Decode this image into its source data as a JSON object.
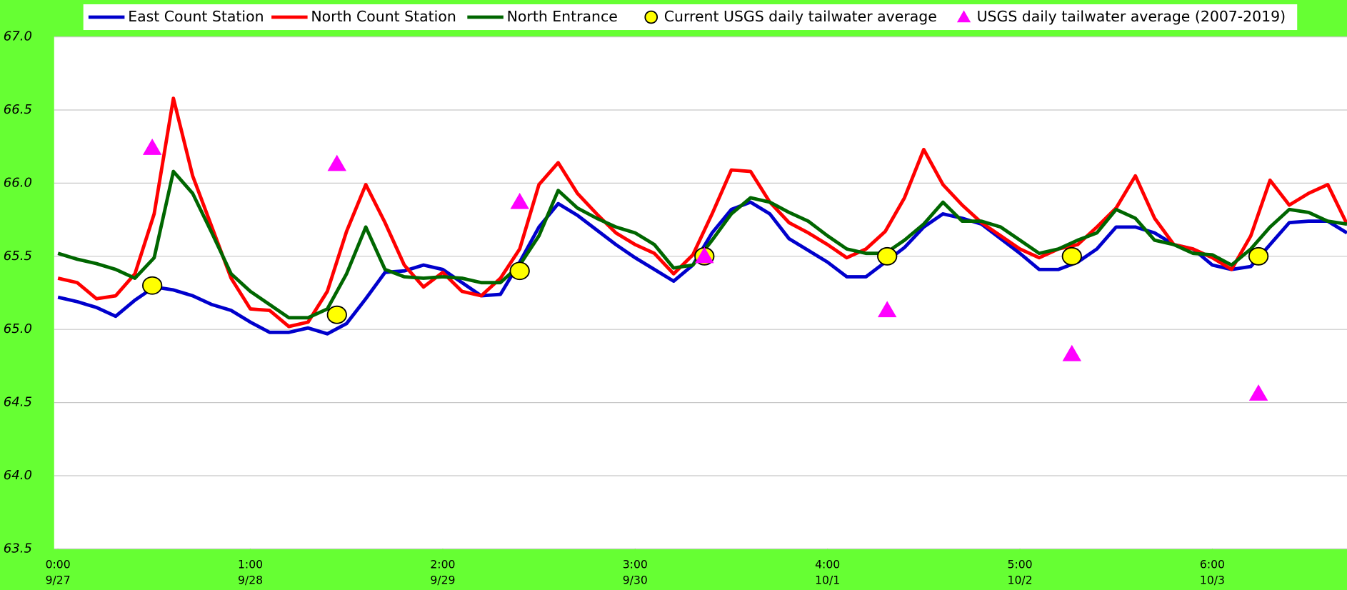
{
  "chart_data": {
    "type": "line",
    "x": [
      0,
      0.1,
      0.2,
      0.3,
      0.4,
      0.5,
      0.6,
      0.7,
      0.8,
      0.9,
      1,
      1.1,
      1.2,
      1.3,
      1.4,
      1.5,
      1.6,
      1.7,
      1.8,
      1.9,
      2,
      2.1,
      2.2,
      2.3,
      2.4,
      2.5,
      2.6,
      2.7,
      2.8,
      2.9,
      3,
      3.1,
      3.2,
      3.3,
      3.4,
      3.5,
      3.6,
      3.7,
      3.8,
      3.9,
      4,
      4.1,
      4.2,
      4.3,
      4.4,
      4.5,
      4.6,
      4.7,
      4.8,
      4.9,
      5,
      5.1,
      5.2,
      5.3,
      5.4,
      5.5,
      5.6,
      5.7,
      5.8,
      5.9,
      6,
      6.1,
      6.2,
      6.3,
      6.4,
      6.5,
      6.6,
      6.7
    ],
    "series": [
      {
        "name": "East Count Station",
        "color": "#0000cc",
        "values": [
          65.22,
          65.19,
          65.15,
          65.09,
          65.2,
          65.29,
          65.27,
          65.23,
          65.17,
          65.13,
          65.05,
          64.98,
          64.98,
          65.01,
          64.97,
          65.04,
          65.21,
          65.39,
          65.4,
          65.44,
          65.41,
          65.32,
          65.23,
          65.24,
          65.46,
          65.7,
          65.86,
          65.78,
          65.68,
          65.58,
          65.49,
          65.41,
          65.33,
          65.44,
          65.66,
          65.82,
          65.87,
          65.79,
          65.62,
          65.54,
          65.46,
          65.36,
          65.36,
          65.46,
          65.56,
          65.7,
          65.79,
          65.76,
          65.72,
          65.62,
          65.52,
          65.41,
          65.41,
          65.46,
          65.55,
          65.7,
          65.7,
          65.66,
          65.58,
          65.55,
          65.44,
          65.41,
          65.43,
          65.58,
          65.73,
          65.74,
          65.74,
          65.66
        ]
      },
      {
        "name": "North Count Station",
        "color": "#ff0000",
        "values": [
          65.35,
          65.32,
          65.21,
          65.23,
          65.38,
          65.79,
          66.58,
          66.05,
          65.7,
          65.35,
          65.14,
          65.13,
          65.02,
          65.05,
          65.26,
          65.67,
          65.99,
          65.73,
          65.44,
          65.29,
          65.39,
          65.26,
          65.23,
          65.35,
          65.55,
          65.99,
          66.14,
          65.93,
          65.79,
          65.66,
          65.58,
          65.52,
          65.38,
          65.51,
          65.79,
          66.09,
          66.08,
          65.87,
          65.73,
          65.66,
          65.58,
          65.49,
          65.55,
          65.67,
          65.9,
          66.23,
          65.99,
          65.85,
          65.73,
          65.64,
          65.55,
          65.49,
          65.55,
          65.58,
          65.7,
          65.83,
          66.05,
          65.76,
          65.58,
          65.55,
          65.49,
          65.41,
          65.64,
          66.02,
          65.85,
          65.93,
          65.99,
          65.72
        ]
      },
      {
        "name": "North Entrance",
        "color": "#006600",
        "values": [
          65.52,
          65.48,
          65.45,
          65.41,
          65.35,
          65.49,
          66.08,
          65.93,
          65.66,
          65.38,
          65.26,
          65.17,
          65.08,
          65.08,
          65.14,
          65.38,
          65.7,
          65.41,
          65.36,
          65.35,
          65.36,
          65.35,
          65.32,
          65.32,
          65.44,
          65.64,
          65.95,
          65.83,
          65.76,
          65.7,
          65.66,
          65.58,
          65.42,
          65.44,
          65.61,
          65.79,
          65.9,
          65.87,
          65.8,
          65.74,
          65.64,
          65.55,
          65.52,
          65.52,
          65.61,
          65.72,
          65.87,
          65.74,
          65.74,
          65.7,
          65.61,
          65.52,
          65.55,
          65.61,
          65.66,
          65.82,
          65.76,
          65.61,
          65.58,
          65.52,
          65.51,
          65.44,
          65.55,
          65.7,
          65.82,
          65.8,
          65.74,
          65.72
        ]
      },
      {
        "name": "Current USGS daily tailwater average",
        "color": "#ffff00",
        "marker": "circle",
        "x": [
          0.49,
          1.45,
          2.4,
          3.36,
          4.31,
          5.27,
          6.24
        ],
        "values": [
          65.3,
          65.1,
          65.4,
          65.5,
          65.5,
          65.5,
          65.5
        ]
      },
      {
        "name": "USGS daily tailwater average (2007-2019)",
        "color": "#ff00ff",
        "marker": "triangle",
        "x": [
          0.49,
          1.45,
          2.4,
          3.36,
          4.31,
          5.27,
          6.24
        ],
        "values": [
          66.24,
          66.13,
          65.87,
          65.5,
          65.13,
          64.83,
          64.56
        ]
      }
    ],
    "xlim": [
      -0.02,
      6.7
    ],
    "xticks": [
      {
        "value": 0,
        "label": "0:00"
      },
      {
        "value": 1,
        "label": "1:00"
      },
      {
        "value": 2,
        "label": "2:00"
      },
      {
        "value": 3,
        "label": "3:00"
      },
      {
        "value": 4,
        "label": "4:00"
      },
      {
        "value": 5,
        "label": "5:00"
      },
      {
        "value": 6,
        "label": "6:00"
      }
    ],
    "xtick_dates": [
      "9/27",
      "9/28",
      "9/29",
      "9/30",
      "10/1",
      "10/2",
      "10/3"
    ],
    "ylim": [
      63.5,
      67.0
    ],
    "yticks": [
      63.5,
      {
        "value": 64.0,
        "label": "64.0"
      },
      64.5,
      {
        "value": 65.0,
        "label": "65.0"
      },
      65.5,
      {
        "value": 66.0,
        "label": "66.0"
      },
      66.5,
      {
        "value": 67.0,
        "label": "67.0"
      }
    ],
    "grid": true,
    "legend": "top"
  }
}
